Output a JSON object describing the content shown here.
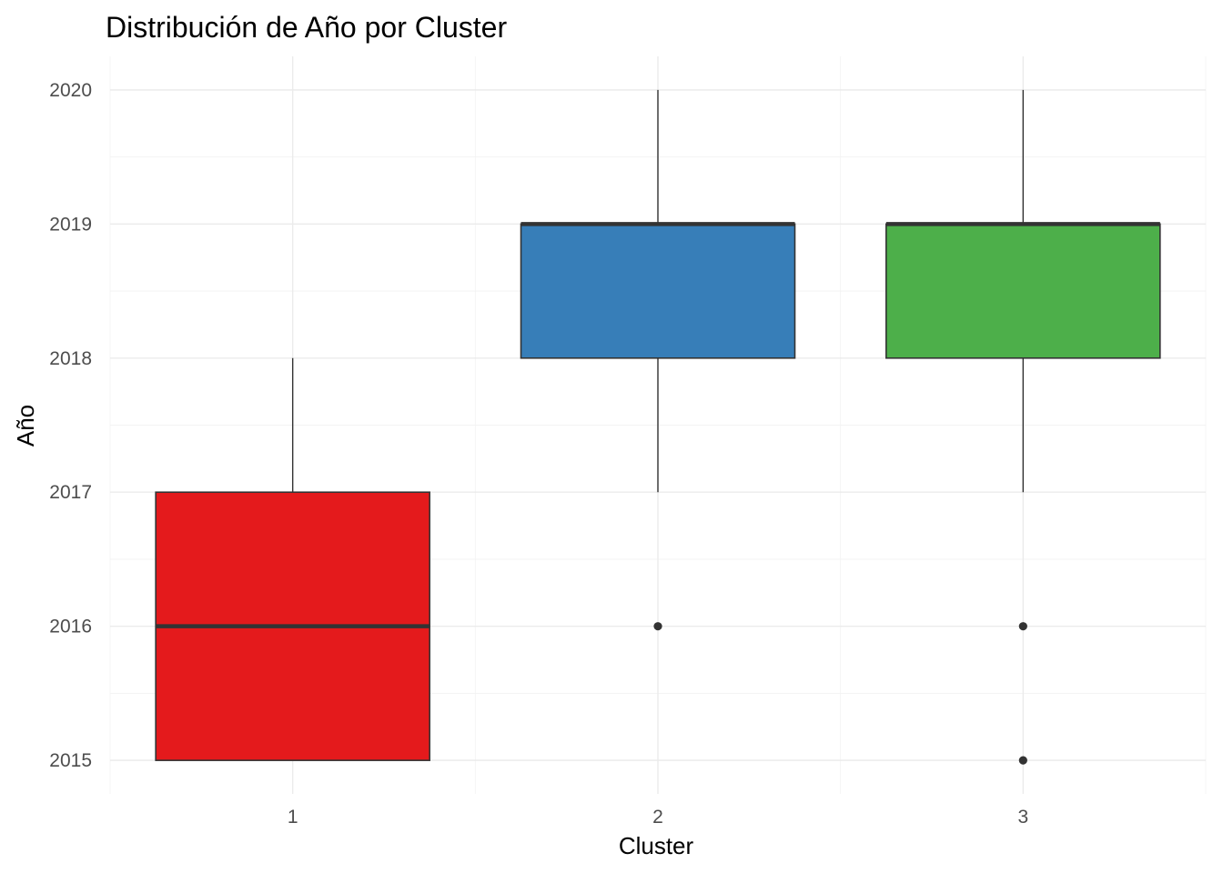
{
  "chart_data": {
    "type": "boxplot",
    "title": "Distribución de Año por Cluster",
    "xlabel": "Cluster",
    "ylabel": "Año",
    "categories": [
      "1",
      "2",
      "3"
    ],
    "ylim": [
      2014.75,
      2020.25
    ],
    "y_ticks": [
      2015,
      2016,
      2017,
      2018,
      2019,
      2020
    ],
    "grid": true,
    "legend": "none",
    "boxes": [
      {
        "category": "1",
        "lower_whisker": 2015,
        "q1": 2015,
        "median": 2016,
        "q3": 2017,
        "upper_whisker": 2018,
        "outliers": [],
        "fill": "#e41a1c"
      },
      {
        "category": "2",
        "lower_whisker": 2017,
        "q1": 2018,
        "median": 2019,
        "q3": 2019,
        "upper_whisker": 2020,
        "outliers": [
          2016
        ],
        "fill": "#377eb8"
      },
      {
        "category": "3",
        "lower_whisker": 2017,
        "q1": 2018,
        "median": 2019,
        "q3": 2019,
        "upper_whisker": 2020,
        "outliers": [
          2016,
          2015
        ],
        "fill": "#4daf4a"
      }
    ]
  }
}
